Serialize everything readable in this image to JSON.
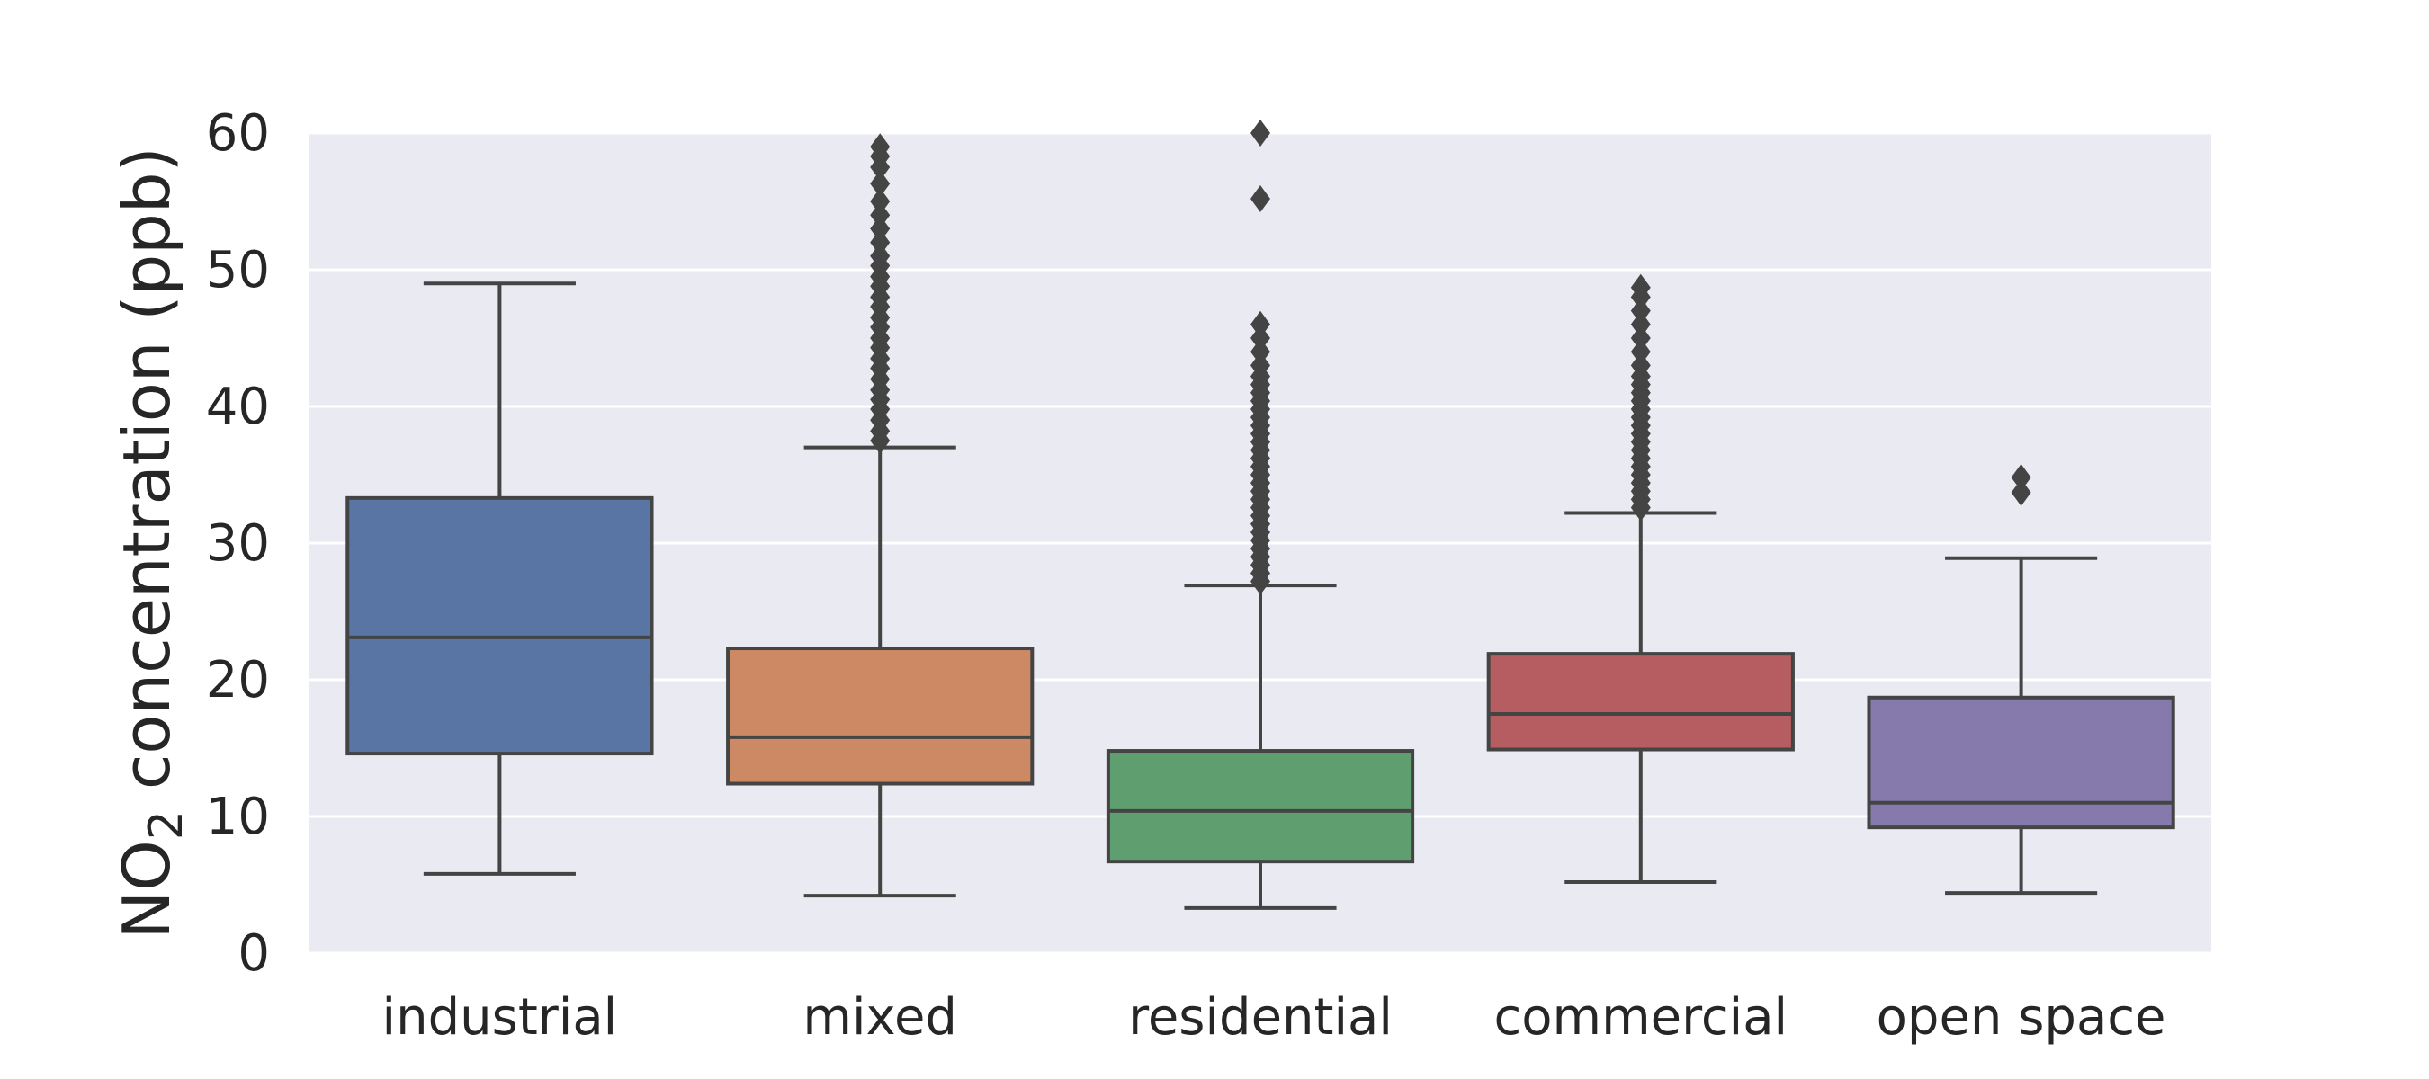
{
  "chart_data": {
    "type": "box",
    "ylabel": "NO2 concentration (ppb)",
    "ylabel_parts": {
      "pre": "NO",
      "sub": "2",
      "post": " concentration (ppb)"
    },
    "ylim": [
      0,
      60
    ],
    "yticks": [
      0,
      10,
      20,
      30,
      40,
      50,
      60
    ],
    "grid": true,
    "background": "#eaeaf2",
    "categories": [
      "industrial",
      "mixed",
      "residential",
      "commercial",
      "open space"
    ],
    "boxes": [
      {
        "category": "industrial",
        "color": "#5875a4",
        "whisker_low": 5.8,
        "q1": 14.6,
        "median": 23.1,
        "q3": 33.3,
        "whisker_high": 49.0,
        "outliers": []
      },
      {
        "category": "mixed",
        "color": "#cc8963",
        "whisker_low": 4.2,
        "q1": 12.4,
        "median": 15.8,
        "q3": 22.3,
        "whisker_high": 37.0,
        "outliers": [
          37.5,
          38.2,
          39.0,
          39.8,
          40.5,
          41.2,
          42.0,
          42.8,
          43.5,
          44.3,
          45.0,
          45.8,
          46.5,
          47.3,
          48.0,
          48.8,
          49.5,
          50.3,
          51.0,
          52.0,
          53.0,
          54.0,
          55.0,
          56.3,
          57.5,
          58.3,
          59.0
        ]
      },
      {
        "category": "residential",
        "color": "#5f9e6e",
        "whisker_low": 3.3,
        "q1": 6.7,
        "median": 10.4,
        "q3": 14.8,
        "whisker_high": 26.9,
        "outliers": [
          27.2,
          27.8,
          28.4,
          29.0,
          29.6,
          30.2,
          30.8,
          31.4,
          32.0,
          32.6,
          33.2,
          33.8,
          34.4,
          35.0,
          35.6,
          36.2,
          36.8,
          37.4,
          38.0,
          38.6,
          39.2,
          39.8,
          40.4,
          41.0,
          41.6,
          42.2,
          43.0,
          44.0,
          45.0,
          46.0,
          55.2,
          60.0
        ]
      },
      {
        "category": "commercial",
        "color": "#b55d60",
        "whisker_low": 5.2,
        "q1": 14.9,
        "median": 17.5,
        "q3": 21.9,
        "whisker_high": 32.2,
        "outliers": [
          32.6,
          33.2,
          33.8,
          34.4,
          35.0,
          35.6,
          36.2,
          36.8,
          37.4,
          38.0,
          38.6,
          39.2,
          39.8,
          40.4,
          41.0,
          41.6,
          42.2,
          43.0,
          44.0,
          45.0,
          46.0,
          47.0,
          48.0,
          48.7
        ]
      },
      {
        "category": "open space",
        "color": "#857aab",
        "whisker_low": 4.4,
        "q1": 9.2,
        "median": 11.0,
        "q3": 18.7,
        "whisker_high": 28.9,
        "outliers": [
          33.7,
          34.8
        ]
      }
    ]
  }
}
